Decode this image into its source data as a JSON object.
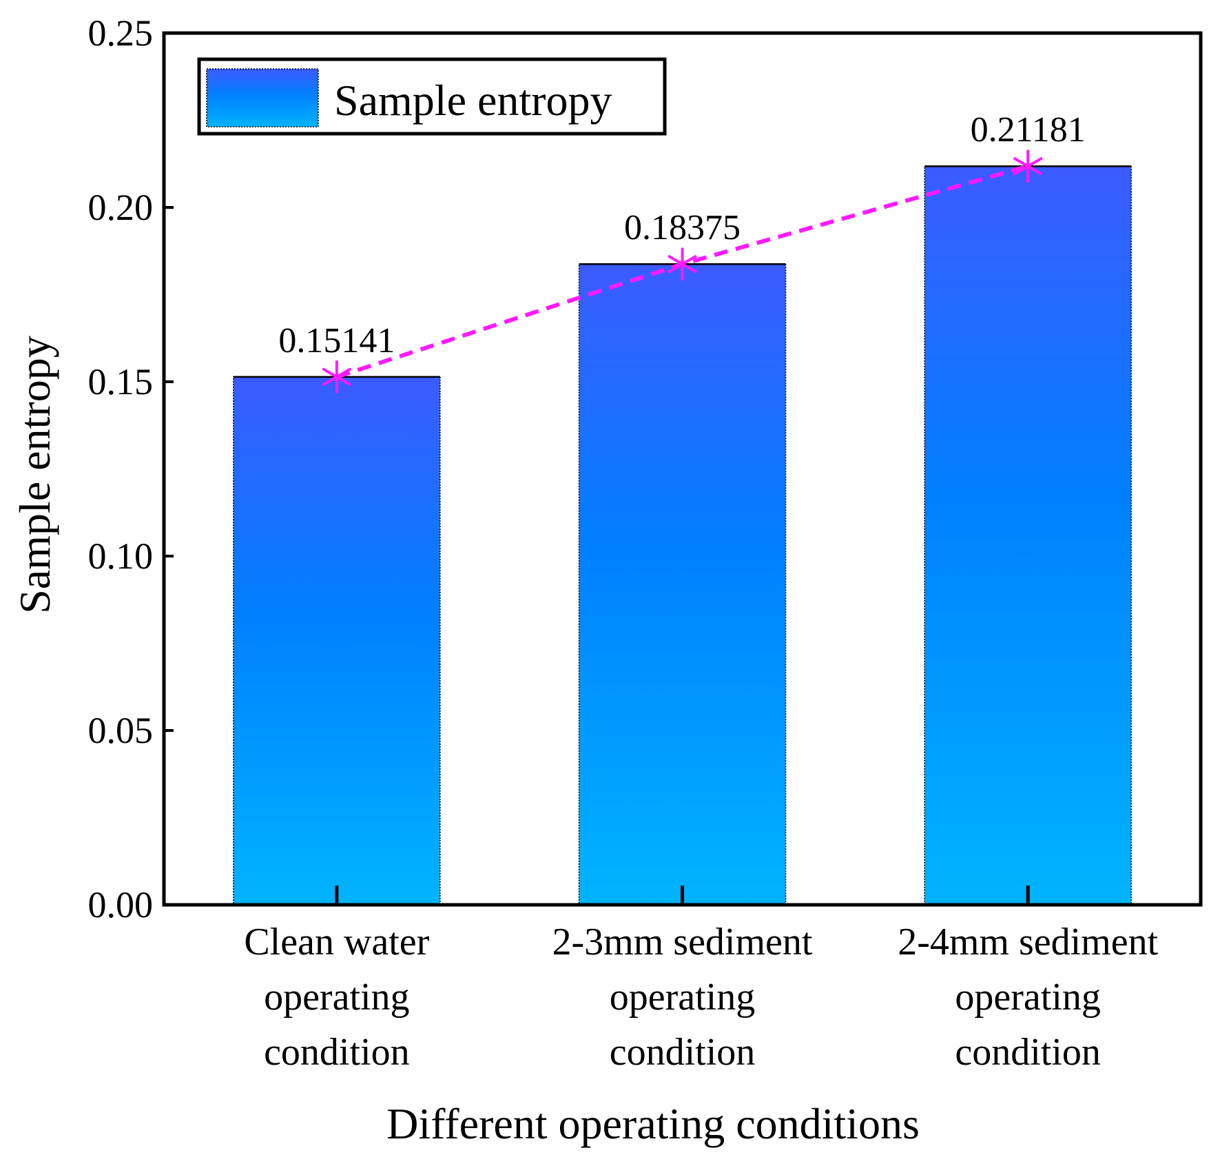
{
  "chart_data": {
    "type": "bar",
    "title": "",
    "categories": [
      [
        "Clean water",
        "operating",
        "condition"
      ],
      [
        "2-3mm sediment",
        "operating",
        "condition"
      ],
      [
        "2-4mm sediment",
        "operating",
        "condition"
      ]
    ],
    "series": [
      {
        "name": "Sample entropy",
        "values": [
          0.15141,
          0.18375,
          0.21181
        ]
      }
    ],
    "data_labels": [
      "0.15141",
      "0.18375",
      "0.21181"
    ],
    "trend_line": {
      "values": [
        0.15141,
        0.18375,
        0.21181
      ],
      "style": "dashed",
      "marker": "asterisk"
    },
    "xlabel": "Different operating conditions",
    "ylabel": "Sample entropy",
    "ylim": [
      0,
      0.25
    ],
    "yticks": [
      "0.00",
      "0.05",
      "0.10",
      "0.15",
      "0.20",
      "0.25"
    ],
    "legend": {
      "label": "Sample entropy",
      "placement": "top-left"
    },
    "grid": false
  },
  "colors": {
    "bar_top": "#3b5bff",
    "bar_mid": "#0080ff",
    "bar_bottom": "#00b4ff",
    "trend": "#ff1aff",
    "axis": "#000000"
  }
}
